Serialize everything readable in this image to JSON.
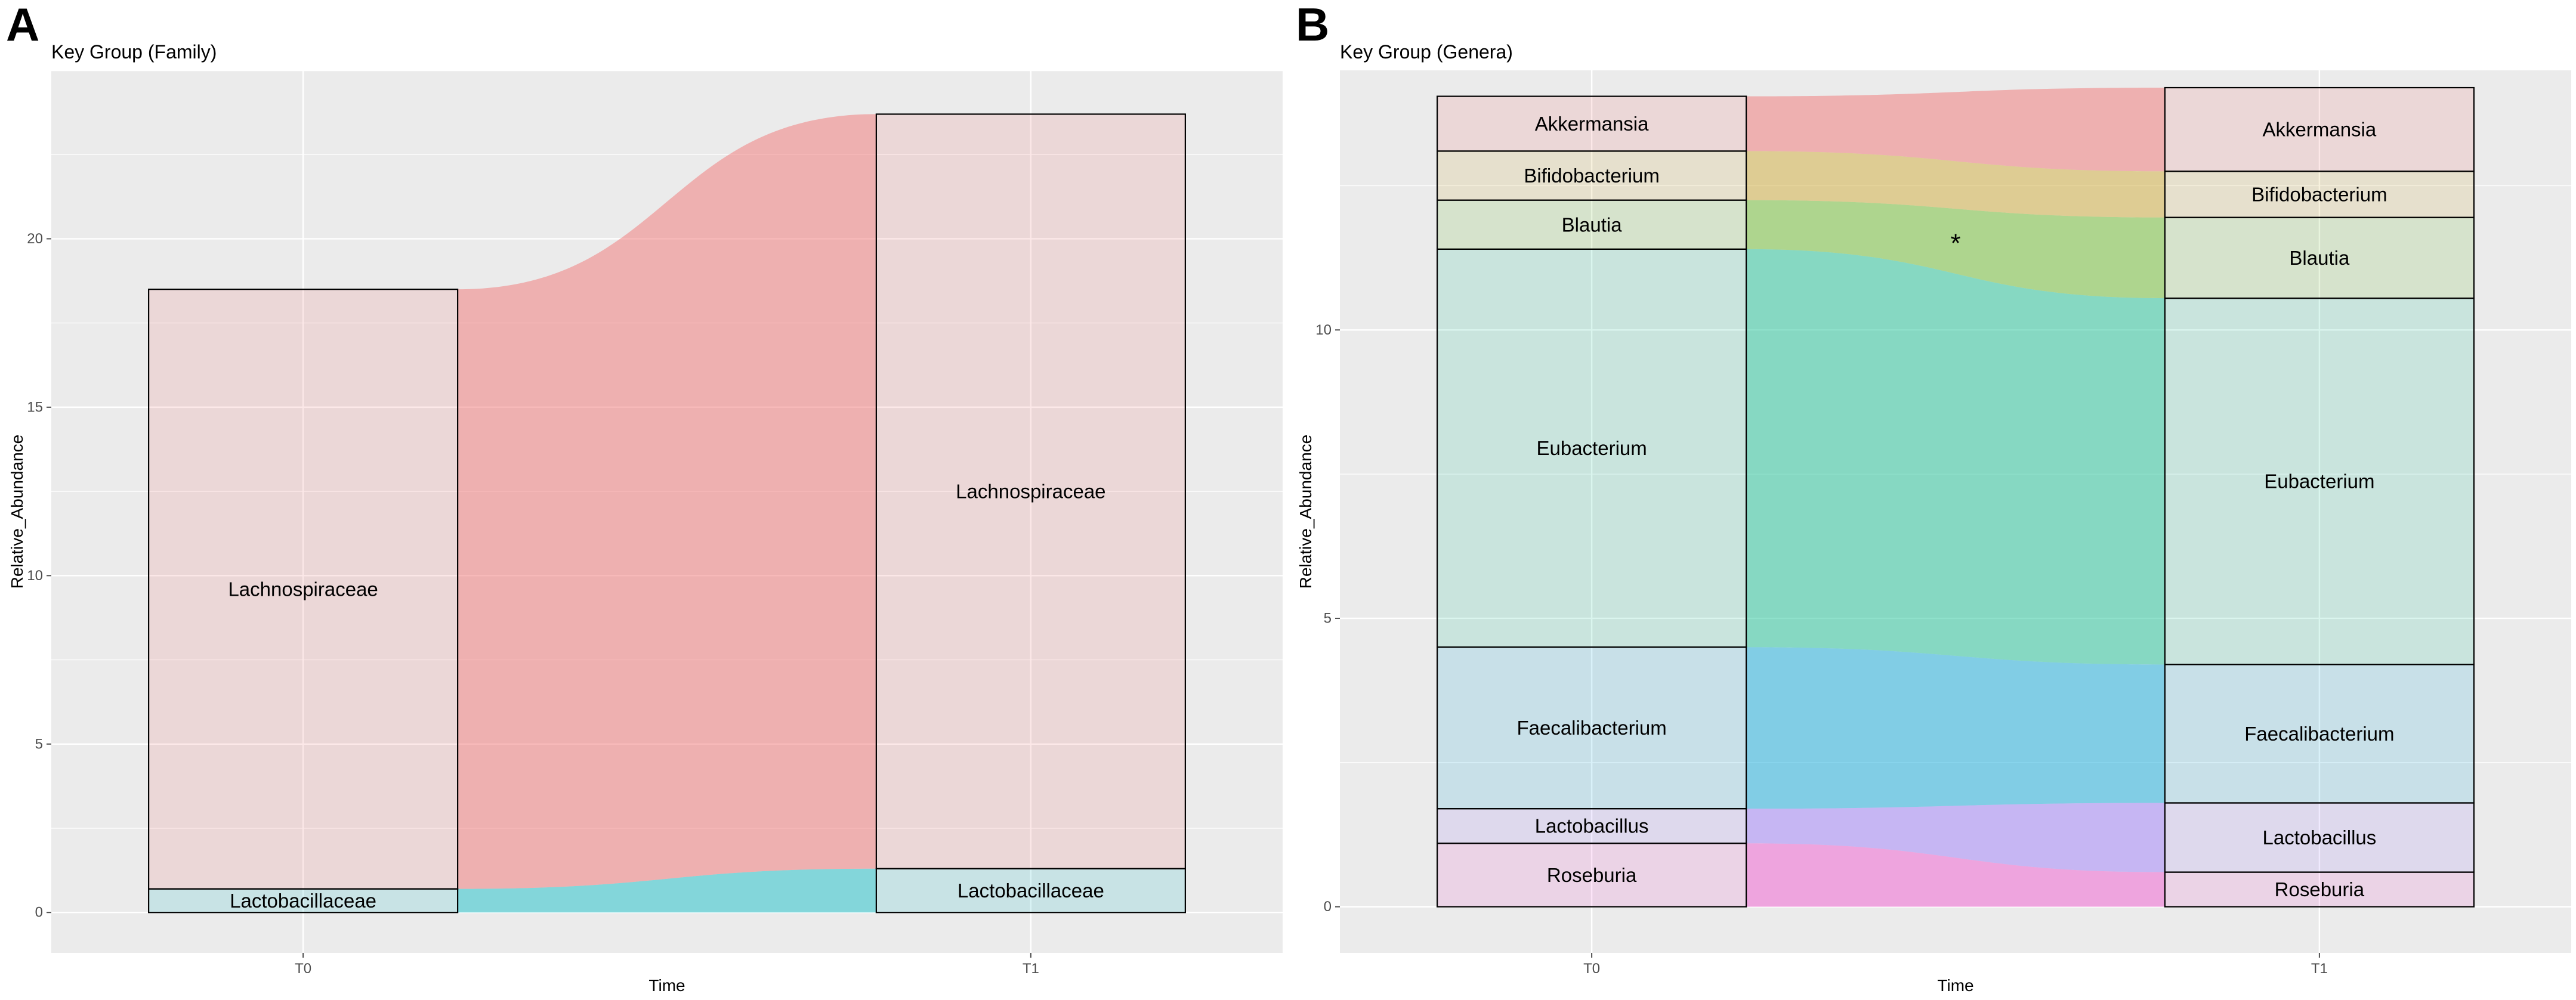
{
  "chart_data": [
    {
      "panel": "A",
      "type": "alluvial",
      "title": "Key Group (Family)",
      "xlabel": "Time",
      "ylabel": "Relative_Abundance",
      "categories": [
        "T0",
        "T1"
      ],
      "ylim": [
        -1.2,
        25.0
      ],
      "yticks": [
        0,
        5,
        10,
        15,
        20
      ],
      "series": [
        {
          "name": "Lachnospiraceae",
          "values": [
            17.8,
            22.4
          ],
          "color": "#f08080"
        },
        {
          "name": "Lactobacillaceae",
          "values": [
            0.7,
            1.3
          ],
          "color": "#2ec4cc"
        }
      ],
      "annotations": []
    },
    {
      "panel": "B",
      "type": "alluvial",
      "title": "Key Group (Genera)",
      "xlabel": "Time",
      "ylabel": "Relative_Abundance",
      "categories": [
        "T0",
        "T1"
      ],
      "ylim": [
        -0.8,
        14.5
      ],
      "yticks": [
        0,
        5,
        10
      ],
      "series": [
        {
          "name": "Akkermansia",
          "values": [
            0.95,
            1.45
          ],
          "color": "#f08080"
        },
        {
          "name": "Bifidobacterium",
          "values": [
            0.85,
            0.8
          ],
          "color": "#d4b24a"
        },
        {
          "name": "Blautia",
          "values": [
            0.85,
            1.4
          ],
          "color": "#7cc242"
        },
        {
          "name": "Eubacterium",
          "values": [
            6.9,
            6.35
          ],
          "color": "#33c9a0"
        },
        {
          "name": "Faecalibacterium",
          "values": [
            2.8,
            2.4
          ],
          "color": "#2ab4e0"
        },
        {
          "name": "Lactobacillus",
          "values": [
            0.6,
            1.2
          ],
          "color": "#a78bfa"
        },
        {
          "name": "Roseburia",
          "values": [
            1.1,
            0.6
          ],
          "color": "#f06ad4"
        }
      ],
      "annotations": [
        {
          "text": "*",
          "category_position": 0.5,
          "y": 11.5
        }
      ]
    }
  ],
  "panels": [
    {
      "letter": "A"
    },
    {
      "letter": "B"
    }
  ]
}
